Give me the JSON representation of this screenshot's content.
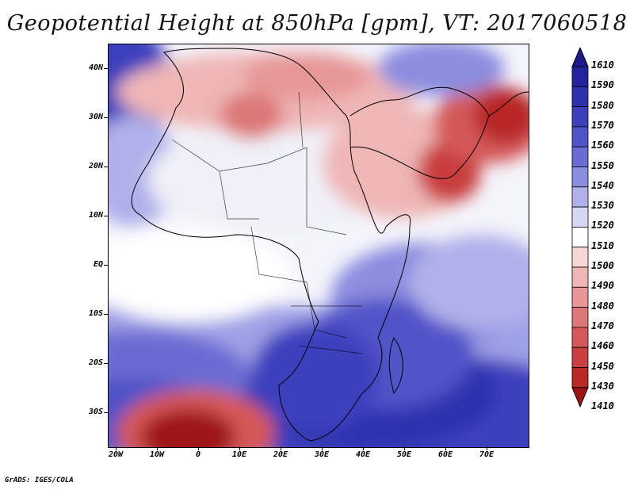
{
  "title": "Geopotential Height at 850hPa [gpm], VT: 2017060518",
  "footer": "GrADS: IGES/COLA",
  "map": {
    "lon_labels": [
      "20W",
      "10W",
      "0",
      "10E",
      "20E",
      "30E",
      "40E",
      "50E",
      "60E",
      "70E"
    ],
    "lat_labels": [
      "40N",
      "30N",
      "20N",
      "10N",
      "EQ",
      "10S",
      "20S",
      "30S"
    ],
    "extent": {
      "lon_min": -22,
      "lon_max": 80,
      "lat_min": -36,
      "lat_max": 45
    }
  },
  "colorbar": {
    "labels": [
      "1610",
      "1590",
      "1580",
      "1570",
      "1560",
      "1550",
      "1540",
      "1530",
      "1520",
      "1510",
      "1500",
      "1490",
      "1480",
      "1470",
      "1460",
      "1450",
      "1430",
      "1410"
    ],
    "colors": [
      "#1c1a8c",
      "#24239e",
      "#2e30ae",
      "#3d3fbd",
      "#5153c8",
      "#6a6cd3",
      "#8b8ddf",
      "#b0b1ea",
      "#d6d7f4",
      "#ffffff",
      "#f7d6d6",
      "#efb6b6",
      "#e79797",
      "#dd7878",
      "#d45959",
      "#c93e3e",
      "#b82626",
      "#9e1414"
    ]
  }
}
